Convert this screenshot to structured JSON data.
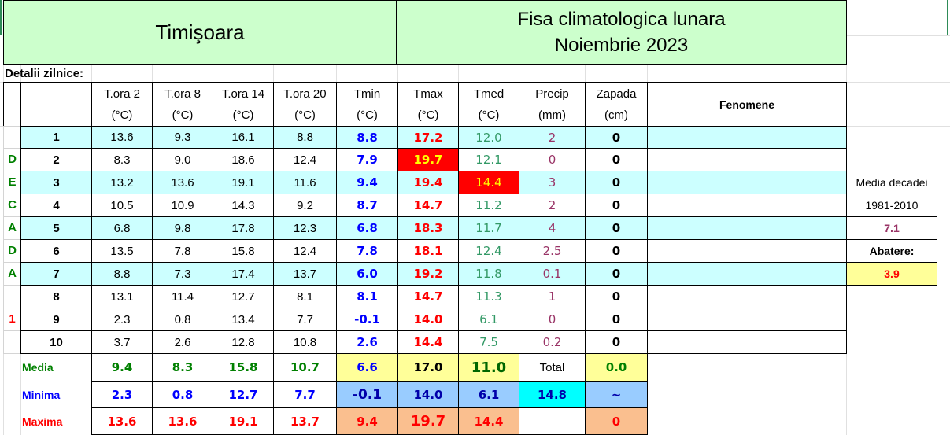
{
  "header": {
    "city": "Timişoara",
    "title_line1": "Fisa climatologica lunara",
    "title_line2": "Noiembrie 2023"
  },
  "section_label": "Detalii zilnice:",
  "columns": [
    {
      "name": "T.ora 2",
      "unit": "(°C)"
    },
    {
      "name": "T.ora 8",
      "unit": "(°C)"
    },
    {
      "name": "T.ora 14",
      "unit": "(°C)"
    },
    {
      "name": "T.ora 20",
      "unit": "(°C)"
    },
    {
      "name": "Tmin",
      "unit": "(°C)"
    },
    {
      "name": "Tmax",
      "unit": "(°C)"
    },
    {
      "name": "Tmed",
      "unit": "(°C)"
    },
    {
      "name": "Precip",
      "unit": "(mm)"
    },
    {
      "name": "Zapada",
      "unit": "(cm)"
    }
  ],
  "fenomene_header": "Fenomene",
  "decade_letters": [
    "D",
    "E",
    "C",
    "A",
    "D",
    "A",
    "1"
  ],
  "rows": [
    {
      "day": "1",
      "values": [
        "13.6",
        "9.3",
        "16.1",
        "8.8",
        "8.8",
        "17.2",
        "12.0",
        "2",
        "0"
      ]
    },
    {
      "day": "2",
      "values": [
        "8.3",
        "9.0",
        "18.6",
        "12.4",
        "7.9",
        "19.7",
        "12.1",
        "0",
        "0"
      ]
    },
    {
      "day": "3",
      "values": [
        "13.2",
        "13.6",
        "19.1",
        "11.6",
        "9.4",
        "19.4",
        "14.4",
        "3",
        "0"
      ]
    },
    {
      "day": "4",
      "values": [
        "10.5",
        "10.9",
        "14.3",
        "9.2",
        "8.7",
        "14.7",
        "11.2",
        "2",
        "0"
      ]
    },
    {
      "day": "5",
      "values": [
        "6.8",
        "9.8",
        "17.8",
        "12.3",
        "6.8",
        "18.3",
        "11.7",
        "4",
        "0"
      ]
    },
    {
      "day": "6",
      "values": [
        "13.5",
        "7.8",
        "15.8",
        "12.4",
        "7.8",
        "18.1",
        "12.4",
        "2.5",
        "0"
      ]
    },
    {
      "day": "7",
      "values": [
        "8.8",
        "7.3",
        "17.4",
        "13.7",
        "6.0",
        "19.2",
        "11.8",
        "0.1",
        "0"
      ]
    },
    {
      "day": "8",
      "values": [
        "13.1",
        "11.4",
        "12.7",
        "8.1",
        "8.1",
        "14.7",
        "11.3",
        "1",
        "0"
      ]
    },
    {
      "day": "9",
      "values": [
        "2.3",
        "0.8",
        "13.4",
        "7.7",
        "-0.1",
        "14.0",
        "6.1",
        "0",
        "0"
      ]
    },
    {
      "day": "10",
      "values": [
        "3.7",
        "2.6",
        "12.8",
        "10.8",
        "2.6",
        "14.4",
        "7.5",
        "0.2",
        "0"
      ]
    }
  ],
  "summary": [
    {
      "label": "Media",
      "values": [
        "9.4",
        "8.3",
        "15.8",
        "10.7",
        "6.6",
        "17.0",
        "11.0",
        "Total",
        "0.0"
      ]
    },
    {
      "label": "Minima",
      "values": [
        "2.3",
        "0.8",
        "12.7",
        "7.7",
        "-0.1",
        "14.0",
        "6.1",
        "14.8",
        "~"
      ]
    },
    {
      "label": "Maxima",
      "values": [
        "13.6",
        "13.6",
        "19.1",
        "13.7",
        "9.4",
        "19.7",
        "14.4",
        null,
        "0"
      ]
    }
  ],
  "side_panel": {
    "line1": "Media decadei",
    "line2": "1981-2010",
    "norm": "7.1",
    "deviation_label": "Abatere:",
    "deviation": "3.9"
  }
}
